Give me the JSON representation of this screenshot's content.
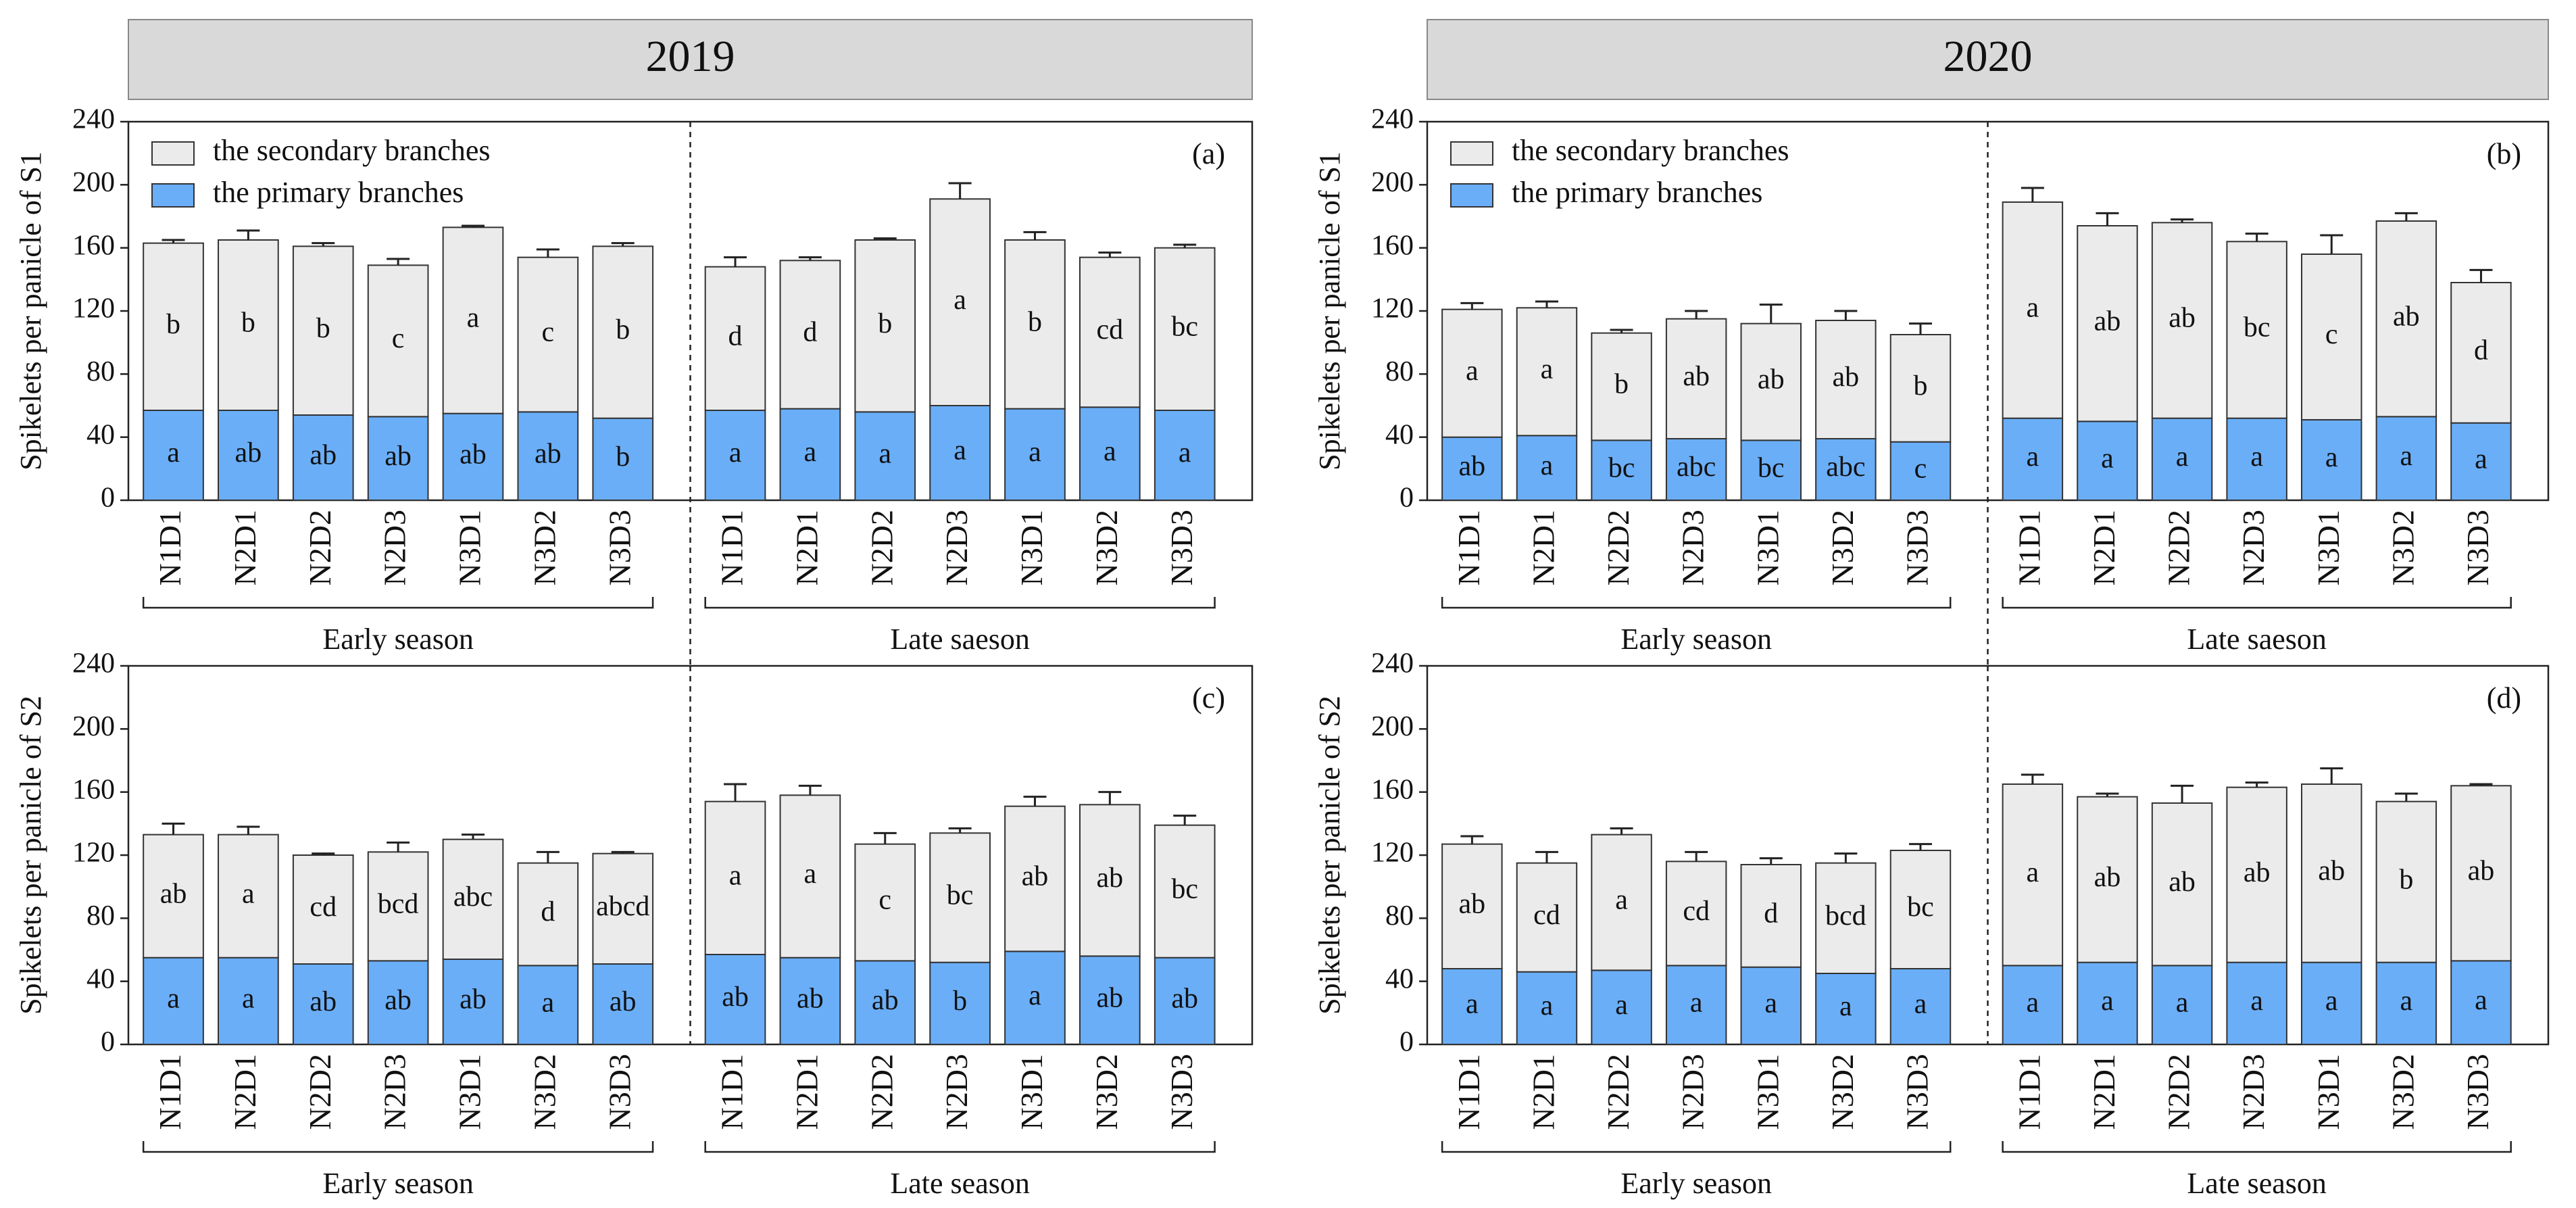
{
  "headers": [
    "2019",
    "2020"
  ],
  "chart_data": [
    {
      "type": "bar",
      "stacked": true,
      "panel_label": "(a)",
      "ylabel": "Spikelets per panicle of S1",
      "categories": [
        "N1D1",
        "N2D1",
        "N2D2",
        "N2D3",
        "N3D1",
        "N3D2",
        "N3D3",
        "N1D1",
        "N2D1",
        "N2D2",
        "N2D3",
        "N3D1",
        "N3D2",
        "N3D3"
      ],
      "group_labels": [
        "Early season",
        "Late saeson"
      ],
      "ylim": [
        0,
        240
      ],
      "yticks": [
        0,
        40,
        80,
        120,
        160,
        200,
        240
      ],
      "legend": "upper left",
      "series": [
        {
          "name": "the primary branches",
          "color": "#6aaef8",
          "values": [
            57,
            57,
            54,
            53,
            55,
            56,
            52,
            57,
            58,
            56,
            60,
            58,
            59,
            57
          ],
          "errors": [
            3,
            4,
            2,
            2,
            2,
            1,
            2,
            2,
            1,
            2,
            3,
            5,
            2,
            2
          ],
          "labels": [
            "a",
            "ab",
            "ab",
            "ab",
            "ab",
            "ab",
            "b",
            "a",
            "a",
            "a",
            "a",
            "a",
            "a",
            "a"
          ]
        },
        {
          "name": "the secondary branches",
          "color": "#ebebeb",
          "values": [
            106,
            108,
            107,
            96,
            118,
            98,
            109,
            91,
            94,
            109,
            131,
            107,
            95,
            103
          ],
          "errors": [
            2,
            6,
            2,
            4,
            1,
            5,
            2,
            6,
            2,
            1,
            10,
            5,
            3,
            2
          ],
          "labels": [
            "b",
            "b",
            "b",
            "c",
            "a",
            "c",
            "b",
            "d",
            "d",
            "b",
            "a",
            "b",
            "cd",
            "bc"
          ]
        }
      ]
    },
    {
      "type": "bar",
      "stacked": true,
      "panel_label": "(b)",
      "ylabel": "Spikelets per panicle of S1",
      "categories": [
        "N1D1",
        "N2D1",
        "N2D2",
        "N2D3",
        "N3D1",
        "N3D2",
        "N3D3",
        "N1D1",
        "N2D1",
        "N2D2",
        "N2D3",
        "N3D1",
        "N3D2",
        "N3D3"
      ],
      "group_labels": [
        "Early season",
        "Late saeson"
      ],
      "ylim": [
        0,
        240
      ],
      "yticks": [
        0,
        40,
        80,
        120,
        160,
        200,
        240
      ],
      "legend": "upper left",
      "series": [
        {
          "name": "the primary branches",
          "color": "#6aaef8",
          "values": [
            40,
            41,
            38,
            39,
            38,
            39,
            37,
            52,
            50,
            52,
            52,
            51,
            53,
            49
          ],
          "errors": [
            1,
            2,
            1,
            1,
            1,
            1,
            1,
            3,
            2,
            1,
            1,
            2,
            1,
            3
          ],
          "labels": [
            "ab",
            "a",
            "bc",
            "abc",
            "bc",
            "abc",
            "c",
            "a",
            "a",
            "a",
            "a",
            "a",
            "a",
            "a"
          ]
        },
        {
          "name": "the secondary branches",
          "color": "#ebebeb",
          "values": [
            81,
            81,
            68,
            76,
            74,
            75,
            68,
            137,
            124,
            124,
            112,
            105,
            124,
            89
          ],
          "errors": [
            4,
            4,
            2,
            5,
            12,
            6,
            7,
            9,
            8,
            2,
            5,
            12,
            5,
            8
          ],
          "labels": [
            "a",
            "a",
            "b",
            "ab",
            "ab",
            "ab",
            "b",
            "a",
            "ab",
            "ab",
            "bc",
            "c",
            "ab",
            "d"
          ]
        }
      ]
    },
    {
      "type": "bar",
      "stacked": true,
      "panel_label": "(c)",
      "ylabel": "Spikelets per panicle of S2",
      "categories": [
        "N1D1",
        "N2D1",
        "N2D2",
        "N2D3",
        "N3D1",
        "N3D2",
        "N3D3",
        "N1D1",
        "N2D1",
        "N2D2",
        "N2D3",
        "N3D1",
        "N3D2",
        "N3D3"
      ],
      "group_labels": [
        "Early season",
        "Late season"
      ],
      "ylim": [
        0,
        240
      ],
      "yticks": [
        0,
        40,
        80,
        120,
        160,
        200,
        240
      ],
      "series": [
        {
          "color": "#6aaef8",
          "values": [
            55,
            55,
            51,
            53,
            54,
            50,
            51,
            57,
            55,
            53,
            52,
            59,
            56,
            55
          ],
          "errors": [
            3,
            1,
            2,
            3,
            3,
            3,
            5,
            4,
            2,
            3,
            2,
            2,
            5,
            1
          ],
          "labels": [
            "a",
            "a",
            "ab",
            "ab",
            "ab",
            "a",
            "ab",
            "ab",
            "ab",
            "ab",
            "b",
            "a",
            "ab",
            "ab"
          ]
        },
        {
          "color": "#ebebeb",
          "values": [
            78,
            78,
            69,
            69,
            76,
            65,
            70,
            97,
            103,
            74,
            82,
            92,
            96,
            84
          ],
          "errors": [
            7,
            5,
            1,
            6,
            3,
            7,
            1,
            11,
            6,
            7,
            3,
            6,
            8,
            6
          ],
          "labels": [
            "ab",
            "a",
            "cd",
            "bcd",
            "abc",
            "d",
            "abcd",
            "a",
            "a",
            "c",
            "bc",
            "ab",
            "ab",
            "bc"
          ]
        }
      ]
    },
    {
      "type": "bar",
      "stacked": true,
      "panel_label": "(d)",
      "ylabel": "Spikelets per panicle of S2",
      "categories": [
        "N1D1",
        "N2D1",
        "N2D2",
        "N2D3",
        "N3D1",
        "N3D2",
        "N3D3",
        "N1D1",
        "N2D1",
        "N2D2",
        "N2D3",
        "N3D1",
        "N3D2",
        "N3D3"
      ],
      "group_labels": [
        "Early season",
        "Late season"
      ],
      "ylim": [
        0,
        240
      ],
      "yticks": [
        0,
        40,
        80,
        120,
        160,
        200,
        240
      ],
      "series": [
        {
          "color": "#6aaef8",
          "values": [
            48,
            46,
            47,
            50,
            49,
            45,
            48,
            50,
            52,
            50,
            52,
            52,
            52,
            53
          ],
          "errors": [
            4,
            2,
            3,
            1,
            2,
            4,
            4,
            3,
            2,
            3,
            3,
            2,
            5,
            2
          ],
          "labels": [
            "a",
            "a",
            "a",
            "a",
            "a",
            "a",
            "a",
            "a",
            "a",
            "a",
            "a",
            "a",
            "a",
            "a"
          ]
        },
        {
          "color": "#ebebeb",
          "values": [
            79,
            69,
            86,
            66,
            65,
            70,
            75,
            115,
            105,
            103,
            111,
            113,
            102,
            111
          ],
          "errors": [
            5,
            7,
            4,
            6,
            4,
            6,
            4,
            6,
            2,
            11,
            3,
            10,
            5,
            1
          ],
          "labels": [
            "ab",
            "cd",
            "a",
            "cd",
            "d",
            "bcd",
            "bc",
            "a",
            "ab",
            "ab",
            "ab",
            "ab",
            "b",
            "ab"
          ]
        }
      ]
    }
  ]
}
